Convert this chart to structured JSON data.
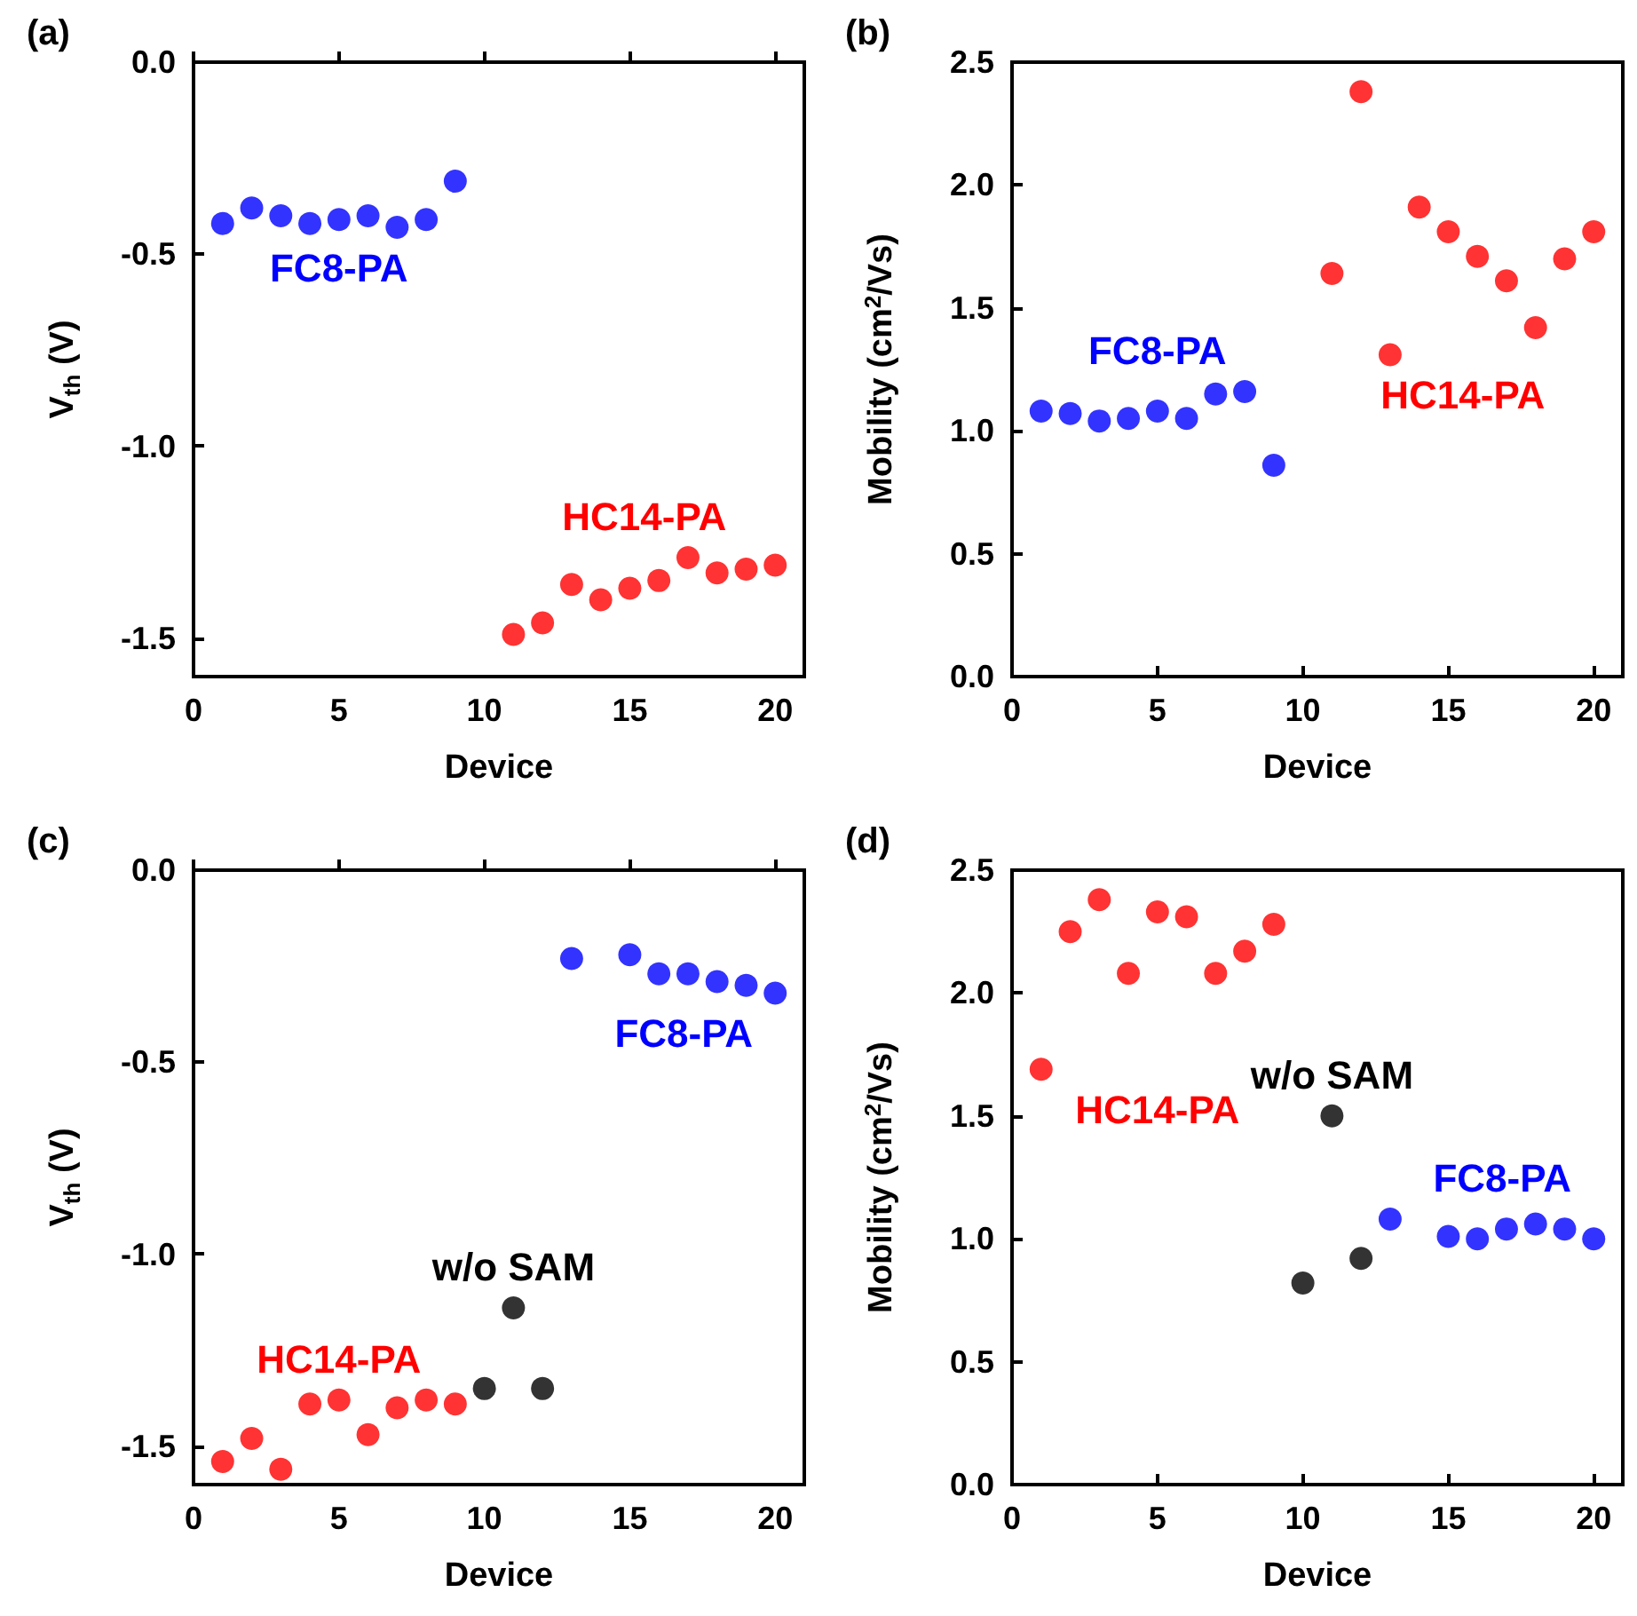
{
  "chart_data": [
    {
      "type": "scatter",
      "title": "(a)",
      "xlabel": "Device",
      "ylabel": "V$_{th}$ (V)",
      "xlim": [
        0,
        21
      ],
      "xticks": [
        0,
        5,
        10,
        15,
        20
      ],
      "ylim": [
        -1.6,
        0
      ],
      "yticks": [
        {
          "value": -1.5,
          "label": "-1.5"
        },
        {
          "value": -1,
          "label": "-1.0"
        },
        {
          "value": -0.5,
          "label": "-0.5"
        },
        {
          "value": 0,
          "label": "0.0"
        }
      ],
      "marker": "circle",
      "series": [
        {
          "name": "FC8-PA",
          "color": "#0000ff",
          "x": [
            1,
            2,
            3,
            4,
            5,
            6,
            7,
            8,
            9
          ],
          "values": [
            -0.42,
            -0.38,
            -0.4,
            -0.42,
            -0.41,
            -0.4,
            -0.43,
            -0.41,
            -0.31
          ]
        },
        {
          "name": "HC14-PA",
          "color": "#ff0000",
          "x": [
            11,
            12,
            13,
            14,
            15,
            16,
            17,
            18,
            19,
            20
          ],
          "values": [
            -1.49,
            -1.46,
            -1.36,
            -1.4,
            -1.37,
            -1.35,
            -1.29,
            -1.33,
            -1.32,
            -1.31
          ]
        }
      ]
    },
    {
      "type": "scatter",
      "title": "(b)",
      "xlabel": "Device",
      "ylabel": "Mobility (cm$^{2}$/Vs)",
      "xlim": [
        0,
        21
      ],
      "xticks": [
        0,
        5,
        10,
        15,
        20
      ],
      "ylim": [
        0,
        2.5
      ],
      "yticks": [
        {
          "value": 0,
          "label": "0.0"
        },
        0.5,
        {
          "value": 1,
          "label": "1.0"
        },
        1.5,
        {
          "value": 2,
          "label": "2.0"
        },
        2.5
      ],
      "marker": "circle",
      "series": [
        {
          "name": "FC8-PA",
          "color": "#0000ff",
          "x": [
            1,
            2,
            3,
            4,
            5,
            6,
            7,
            8,
            9
          ],
          "values": [
            1.08,
            1.07,
            1.04,
            1.05,
            1.08,
            1.05,
            1.15,
            1.16,
            0.86
          ]
        },
        {
          "name": "HC14-PA",
          "color": "#ff0000",
          "x": [
            11,
            12,
            13,
            14,
            15,
            16,
            17,
            18,
            19,
            20
          ],
          "values": [
            1.64,
            2.38,
            1.31,
            1.91,
            1.81,
            1.71,
            1.61,
            1.42,
            1.7,
            1.81
          ]
        }
      ]
    },
    {
      "type": "scatter",
      "title": "(c)",
      "xlabel": "Device",
      "ylabel": "V$_{th}$ (V)",
      "xlim": [
        0,
        21
      ],
      "xticks": [
        0,
        5,
        10,
        15,
        20
      ],
      "ylim": [
        -1.6,
        0
      ],
      "yticks": [
        {
          "value": -1.5,
          "label": "-1.5"
        },
        {
          "value": -1,
          "label": "-1.0"
        },
        {
          "value": -0.5,
          "label": "-0.5"
        },
        {
          "value": 0,
          "label": "0.0"
        }
      ],
      "marker": "circle",
      "series": [
        {
          "name": "HC14-PA",
          "color": "#ff0000",
          "x": [
            1,
            2,
            3,
            4,
            5,
            6,
            7,
            8,
            9
          ],
          "values": [
            -1.54,
            -1.48,
            -1.56,
            -1.39,
            -1.38,
            -1.47,
            -1.4,
            -1.38,
            -1.39
          ]
        },
        {
          "name": "w/o SAM",
          "color": "#000000",
          "x": [
            10,
            11,
            12
          ],
          "values": [
            -1.35,
            -1.14,
            -1.35
          ]
        },
        {
          "name": "FC8-PA",
          "color": "#0000ff",
          "x": [
            13,
            15,
            16,
            17,
            18,
            19,
            20
          ],
          "values": [
            -0.23,
            -0.22,
            -0.27,
            -0.27,
            -0.29,
            -0.3,
            -0.32
          ]
        }
      ]
    },
    {
      "type": "scatter",
      "title": "(d)",
      "xlabel": "Device",
      "ylabel": "Mobility (cm$^{2}$/Vs)",
      "xlim": [
        0,
        21
      ],
      "xticks": [
        0,
        5,
        10,
        15,
        20
      ],
      "ylim": [
        0,
        2.5
      ],
      "yticks": [
        {
          "value": 0,
          "label": "0.0"
        },
        0.5,
        {
          "value": 1,
          "label": "1.0"
        },
        1.5,
        {
          "value": 2,
          "label": "2.0"
        },
        2.5
      ],
      "marker": "circle",
      "series": [
        {
          "name": "HC14-PA",
          "color": "#ff0000",
          "x": [
            1,
            2,
            3,
            4,
            5,
            6,
            7,
            8,
            9
          ],
          "values": [
            1.69,
            2.25,
            2.38,
            2.08,
            2.33,
            2.31,
            2.08,
            2.17,
            2.28
          ]
        },
        {
          "name": "w/o SAM",
          "color": "#000000",
          "x": [
            10,
            11,
            12
          ],
          "values": [
            0.82,
            1.5,
            0.92
          ]
        },
        {
          "name": "FC8-PA",
          "color": "#0000ff",
          "x": [
            13,
            15,
            16,
            17,
            18,
            19,
            20
          ],
          "values": [
            1.08,
            1.01,
            1.0,
            1.04,
            1.06,
            1.04,
            1.0
          ]
        }
      ]
    }
  ]
}
